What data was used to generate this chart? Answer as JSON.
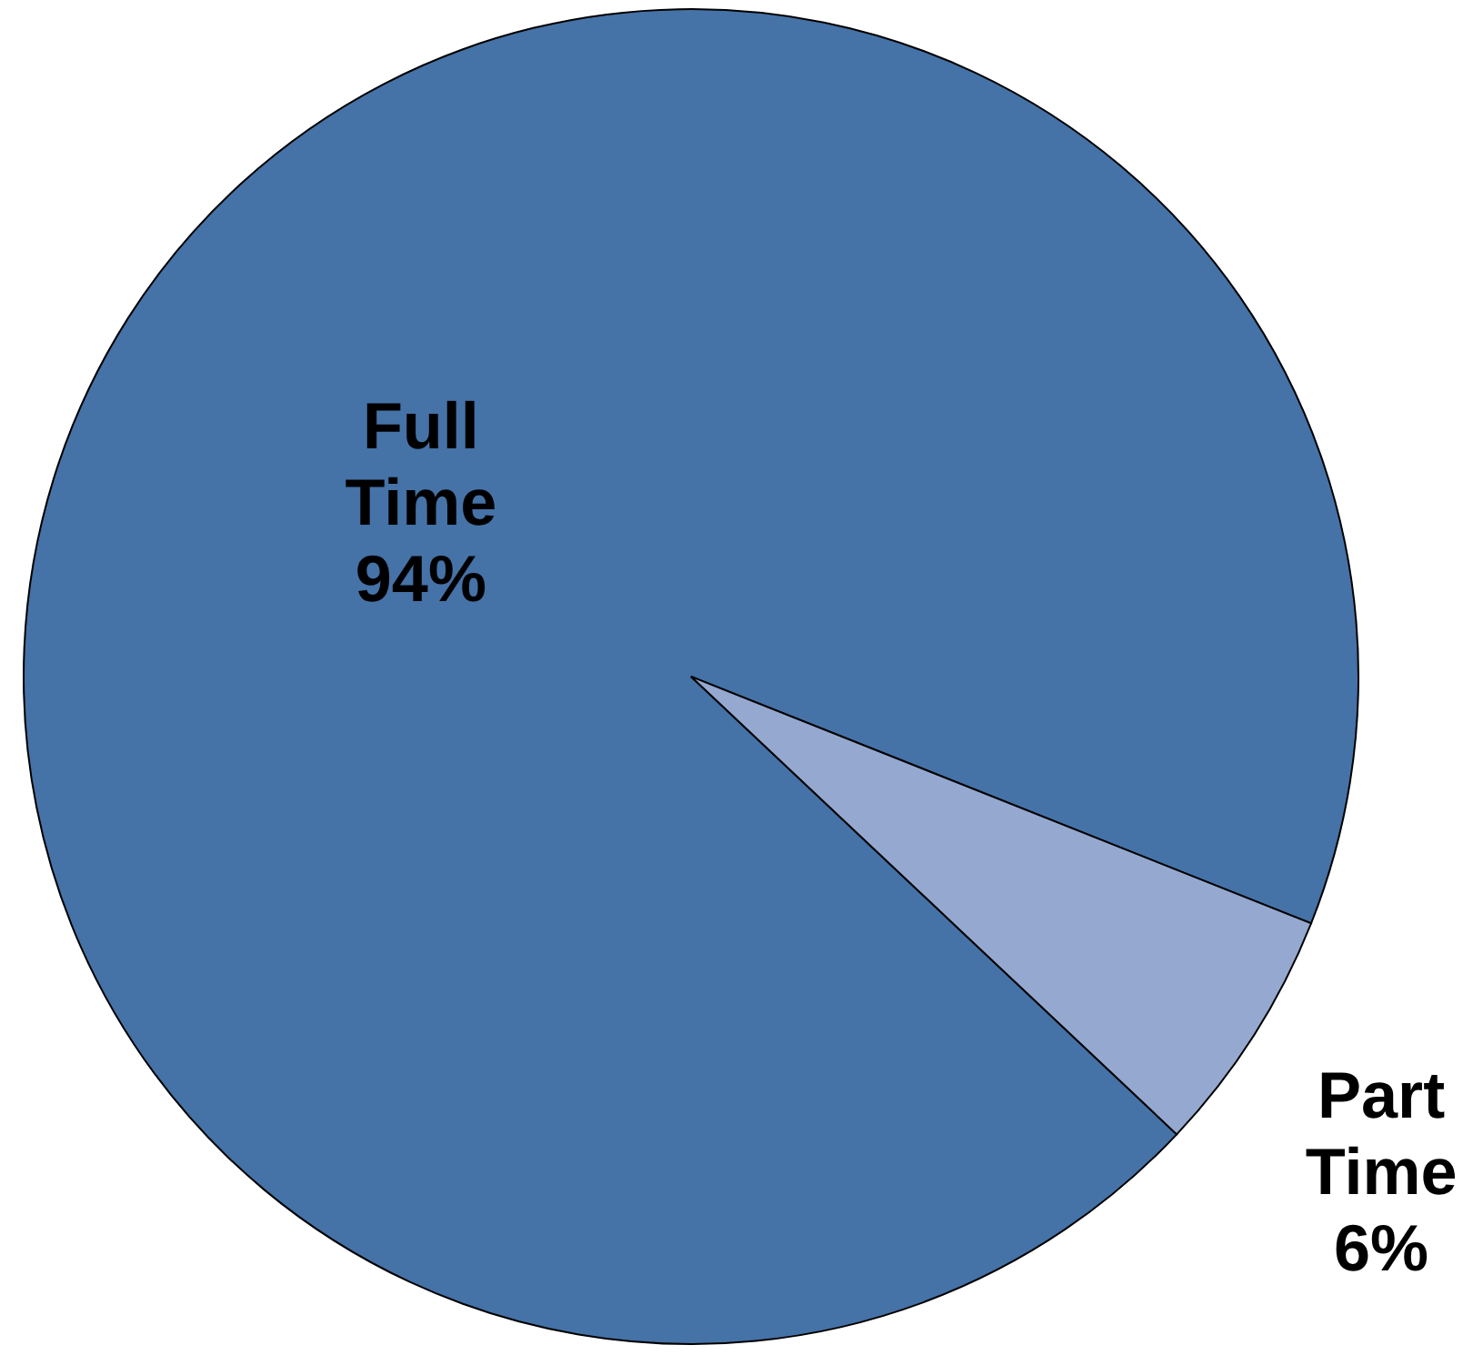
{
  "chart_data": {
    "type": "pie",
    "categories": [
      "Full Time",
      "Part Time"
    ],
    "values": [
      94,
      6
    ],
    "value_labels": [
      "94%",
      "6%"
    ],
    "colors": [
      "#4572a7",
      "#95a9d0"
    ]
  }
}
